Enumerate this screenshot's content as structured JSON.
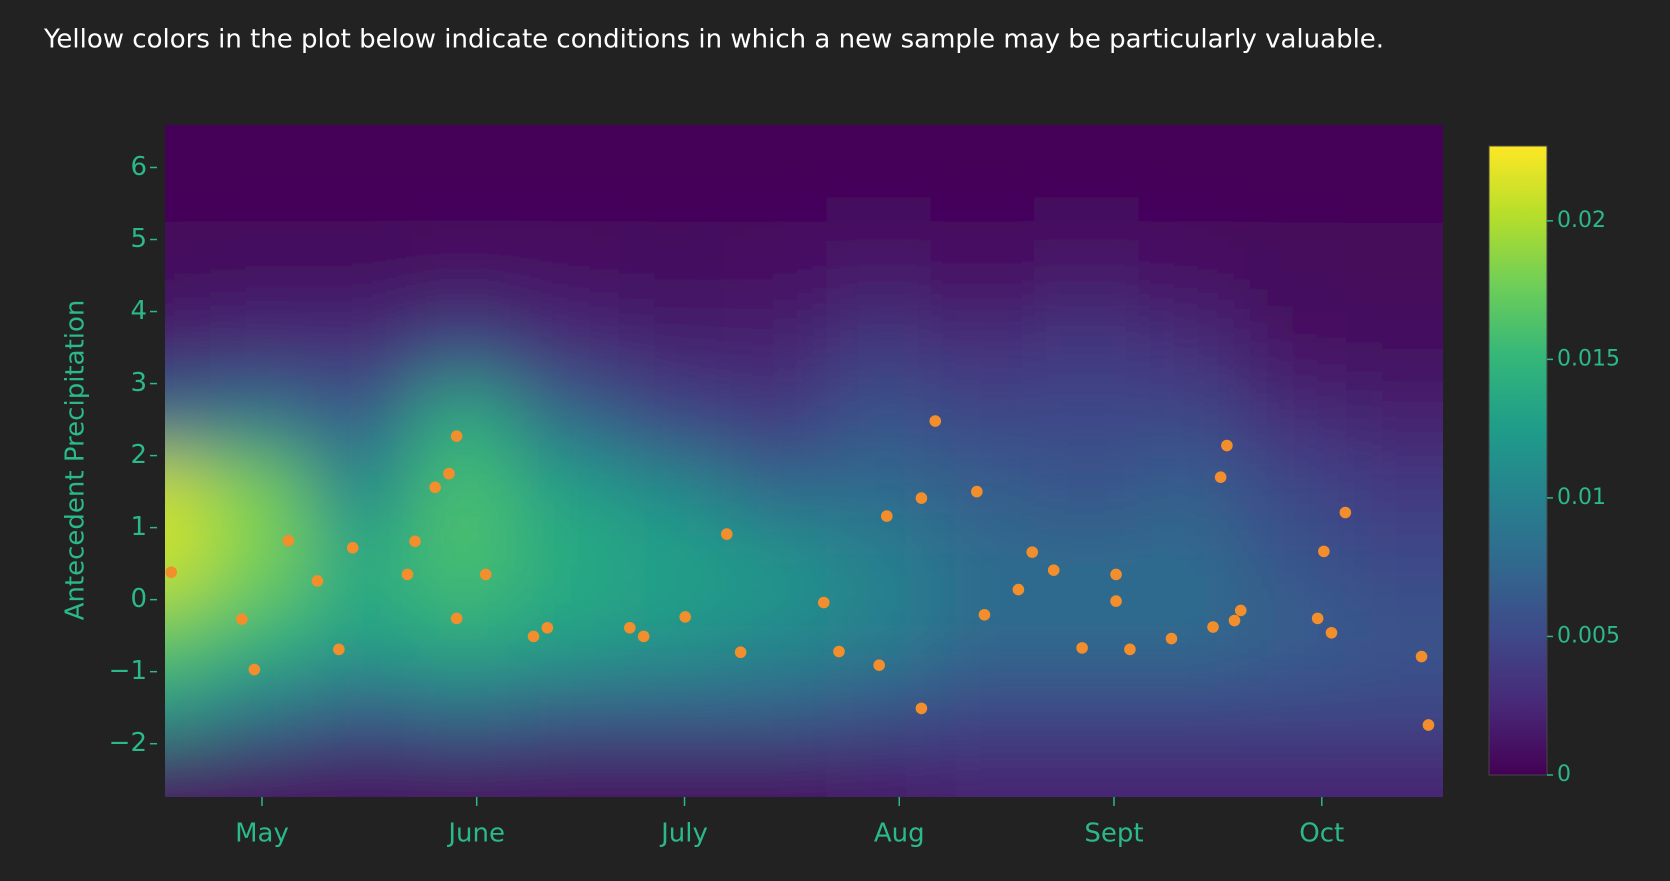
{
  "chart_data": {
    "type": "heatmap",
    "title": "Yellow colors in the plot below indicate conditions in which a new sample may be particularly valuable.",
    "ylabel": "Antecedent Precipitation",
    "xlim": [
      107,
      291.5
    ],
    "xticks": [
      {
        "value": 121,
        "label": "May"
      },
      {
        "value": 152,
        "label": "June"
      },
      {
        "value": 182,
        "label": "July"
      },
      {
        "value": 213,
        "label": "Aug"
      },
      {
        "value": 244,
        "label": "Sept"
      },
      {
        "value": 274,
        "label": "Oct"
      }
    ],
    "ylim": [
      -2.74,
      6.59
    ],
    "yticks": [
      {
        "value": -2,
        "label": "−2"
      },
      {
        "value": -1,
        "label": "−1"
      },
      0,
      1,
      2,
      3,
      4,
      5,
      6
    ],
    "zlim": [
      0,
      0.0227
    ],
    "zticks": [
      0,
      0.005,
      0.01,
      0.015,
      0.02
    ],
    "colorscale": [
      "#440154",
      "#482878",
      "#3e4989",
      "#31688e",
      "#26828e",
      "#1f9e89",
      "#35b779",
      "#6ece58",
      "#b5de2b",
      "#fde725"
    ],
    "heatmap": {
      "x": [
        107,
        120,
        135,
        150,
        165,
        180,
        195,
        210,
        225,
        240,
        255,
        270,
        285
      ],
      "y": [
        -2.5,
        -1.5,
        -0.5,
        0.5,
        1.5,
        2.5,
        3.5,
        4.5,
        6
      ],
      "z": [
        [
          0.001,
          0.001,
          0.001,
          0.001,
          0.001,
          0.001,
          0.001,
          0.0015,
          0.002,
          0.002,
          0.002,
          0.002,
          0.002
        ],
        [
          0.012,
          0.009,
          0.007,
          0.008,
          0.007,
          0.007,
          0.007,
          0.006,
          0.005,
          0.005,
          0.005,
          0.005,
          0.005
        ],
        [
          0.017,
          0.015,
          0.013,
          0.014,
          0.013,
          0.012,
          0.011,
          0.01,
          0.008,
          0.008,
          0.008,
          0.007,
          0.006
        ],
        [
          0.021,
          0.018,
          0.014,
          0.016,
          0.014,
          0.013,
          0.012,
          0.01,
          0.008,
          0.008,
          0.008,
          0.006,
          0.005
        ],
        [
          0.021,
          0.018,
          0.011,
          0.016,
          0.013,
          0.011,
          0.008,
          0.008,
          0.007,
          0.006,
          0.007,
          0.005,
          0.004
        ],
        [
          0.008,
          0.009,
          0.007,
          0.014,
          0.008,
          0.005,
          0.004,
          0.006,
          0.005,
          0.005,
          0.005,
          0.003,
          0.002
        ],
        [
          0.002,
          0.003,
          0.003,
          0.005,
          0.003,
          0.002,
          0.002,
          0.004,
          0.003,
          0.004,
          0.003,
          0.001,
          0.0008
        ],
        [
          0.0005,
          0.0008,
          0.0008,
          0.001,
          0.001,
          0.0008,
          0.001,
          0.0015,
          0.001,
          0.0015,
          0.001,
          0.0005,
          0.0004
        ],
        [
          0.0003,
          0.0003,
          0.0003,
          0.0003,
          0.0003,
          0.0003,
          0.0003,
          0.0003,
          0.0003,
          0.0003,
          0.0003,
          0.0003,
          0.0003
        ]
      ]
    },
    "points": {
      "color": "#f28e2b",
      "x": [
        107.9,
        118.1,
        119.9,
        124.8,
        129.0,
        132.1,
        134.1,
        142.0,
        143.1,
        146.0,
        148.0,
        149.1,
        149.1,
        153.3,
        160.2,
        162.2,
        174.1,
        176.1,
        182.1,
        188.1,
        190.1,
        202.1,
        204.3,
        210.1,
        211.2,
        216.2,
        216.2,
        218.2,
        224.2,
        225.3,
        230.2,
        232.2,
        235.3,
        239.4,
        244.3,
        244.3,
        246.3,
        252.3,
        258.3,
        259.4,
        260.3,
        261.4,
        262.3,
        273.4,
        274.3,
        275.4,
        277.4,
        288.4,
        289.4
      ],
      "y": [
        0.38,
        -0.27,
        -0.97,
        0.82,
        0.26,
        -0.69,
        0.72,
        0.35,
        0.81,
        1.56,
        1.75,
        2.27,
        -0.26,
        0.35,
        -0.51,
        -0.39,
        -0.39,
        -0.51,
        -0.24,
        0.91,
        -0.73,
        -0.04,
        -0.72,
        -0.91,
        1.16,
        -1.51,
        1.41,
        2.48,
        1.5,
        -0.21,
        0.14,
        0.66,
        0.41,
        -0.67,
        0.35,
        -0.02,
        -0.69,
        -0.54,
        -0.38,
        1.7,
        2.14,
        -0.29,
        -0.15,
        -0.26,
        0.67,
        -0.46,
        1.21,
        -0.79,
        -1.74
      ]
    }
  }
}
